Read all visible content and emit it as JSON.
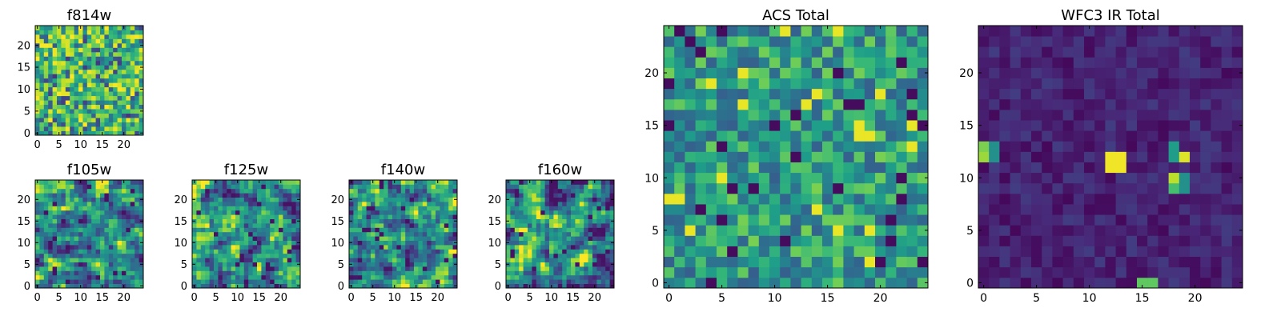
{
  "figure": {
    "description_cols": 25,
    "description_rows": 25
  },
  "chart_data": [
    {
      "type": "heatmap",
      "id": "f814w",
      "title": "f814w",
      "colormap": "viridis",
      "xlim": [
        0,
        25
      ],
      "ylim": [
        0,
        25
      ],
      "x_ticks": [
        "0",
        "5",
        "10",
        "15",
        "20"
      ],
      "y_ticks": [
        "0",
        "5",
        "10",
        "15",
        "20"
      ],
      "seed": 11,
      "texture": "noise"
    },
    {
      "type": "heatmap",
      "id": "f105w",
      "title": "f105w",
      "colormap": "viridis",
      "xlim": [
        0,
        25
      ],
      "ylim": [
        0,
        25
      ],
      "x_ticks": [
        "0",
        "5",
        "10",
        "15",
        "20"
      ],
      "y_ticks": [
        "0",
        "5",
        "10",
        "15",
        "20"
      ],
      "seed": 23,
      "texture": "smooth"
    },
    {
      "type": "heatmap",
      "id": "f125w",
      "title": "f125w",
      "colormap": "viridis",
      "xlim": [
        0,
        25
      ],
      "ylim": [
        0,
        25
      ],
      "x_ticks": [
        "0",
        "5",
        "10",
        "15",
        "20"
      ],
      "y_ticks": [
        "0",
        "5",
        "10",
        "15",
        "20"
      ],
      "seed": 37,
      "texture": "smooth"
    },
    {
      "type": "heatmap",
      "id": "f140w",
      "title": "f140w",
      "colormap": "viridis",
      "xlim": [
        0,
        25
      ],
      "ylim": [
        0,
        25
      ],
      "x_ticks": [
        "0",
        "5",
        "10",
        "15",
        "20"
      ],
      "y_ticks": [
        "0",
        "5",
        "10",
        "15",
        "20"
      ],
      "seed": 41,
      "texture": "smooth"
    },
    {
      "type": "heatmap",
      "id": "f160w",
      "title": "f160w",
      "colormap": "viridis",
      "xlim": [
        0,
        25
      ],
      "ylim": [
        0,
        25
      ],
      "x_ticks": [
        "0",
        "5",
        "10",
        "15",
        "20"
      ],
      "y_ticks": [
        "0",
        "5",
        "10",
        "15",
        "20"
      ],
      "seed": 53,
      "texture": "smooth"
    },
    {
      "type": "heatmap",
      "id": "acs-total",
      "title": "ACS Total",
      "colormap": "viridis",
      "xlim": [
        0,
        25
      ],
      "ylim": [
        0,
        25
      ],
      "x_ticks": [
        "0",
        "5",
        "10",
        "15",
        "20"
      ],
      "y_ticks": [
        "0",
        "5",
        "10",
        "15",
        "20"
      ],
      "seed": 67,
      "texture": "acs"
    },
    {
      "type": "heatmap",
      "id": "wfc3-ir-total",
      "title": "WFC3 IR Total",
      "colormap": "viridis",
      "xlim": [
        0,
        25
      ],
      "ylim": [
        0,
        25
      ],
      "x_ticks": [
        "0",
        "5",
        "10",
        "15",
        "20"
      ],
      "y_ticks": [
        "0",
        "5",
        "10",
        "15",
        "20"
      ],
      "seed": 79,
      "texture": "ir",
      "bright_spots": [
        {
          "col": 12,
          "row": 11,
          "w": 2,
          "h": 2,
          "value": 0.98
        },
        {
          "col": 19,
          "row": 12,
          "w": 1,
          "h": 1,
          "value": 0.95
        },
        {
          "col": 18,
          "row": 10,
          "w": 1,
          "h": 1,
          "value": 0.9
        },
        {
          "col": 0,
          "row": 12,
          "w": 1,
          "h": 1,
          "value": 0.85
        },
        {
          "col": 0,
          "row": 13,
          "w": 1,
          "h": 1,
          "value": 0.8
        },
        {
          "col": 15,
          "row": 0,
          "w": 2,
          "h": 1,
          "value": 0.75
        },
        {
          "col": 18,
          "row": 9,
          "w": 1,
          "h": 1,
          "value": 0.7
        },
        {
          "col": 18,
          "row": 12,
          "w": 1,
          "h": 2,
          "value": 0.55
        },
        {
          "col": 19,
          "row": 9,
          "w": 1,
          "h": 2,
          "value": 0.5
        },
        {
          "col": 1,
          "row": 12,
          "w": 1,
          "h": 2,
          "value": 0.5
        }
      ]
    }
  ]
}
